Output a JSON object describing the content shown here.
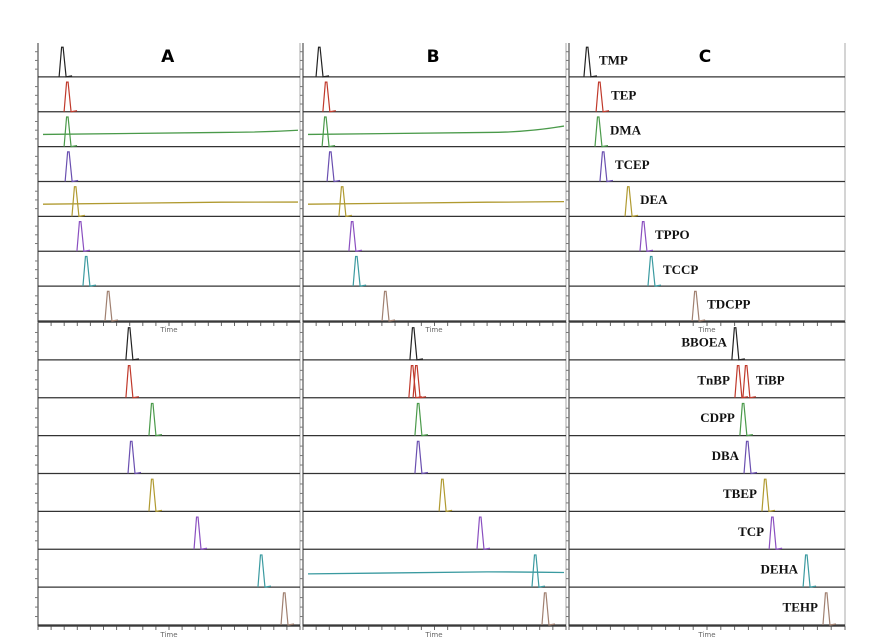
{
  "chart_data": {
    "type": "line",
    "title": "",
    "xlabel": "Time",
    "ylabel": "",
    "xlim": [
      0,
      100
    ],
    "x_units": "percent of run time",
    "compounds_top": [
      "TMP",
      "TEP",
      "DMA",
      "TCEP",
      "DEA",
      "TPPO",
      "TCCP",
      "TDCPP"
    ],
    "compounds_bottom": [
      "BBOEA",
      "TnBP / TiBP",
      "CDPP",
      "DBA",
      "TBEP",
      "TCP",
      "DEHA",
      "TEHP"
    ],
    "labels": {
      "top": [
        "TMP",
        "TEP",
        "DMA",
        "TCEP",
        "DEA",
        "TPPO",
        "TCCP",
        "TDCPP"
      ],
      "bottom": [
        "BBOEA",
        "TnBP",
        "CDPP",
        "DBA",
        "TBEP",
        "TCP",
        "DEHA",
        "TEHP"
      ],
      "extra": "TiBP"
    },
    "trace_colors": [
      "#222222",
      "#c0392b",
      "#4a9a4a",
      "#6a4fb0",
      "#b09a30",
      "#8a4fc0",
      "#3a9aa0",
      "#a08070"
    ],
    "panels": [
      {
        "name": "A",
        "top_peaks": [
          [
            9.2
          ],
          [
            11.1
          ],
          [
            11.1
          ],
          [
            11.5
          ],
          [
            14.1
          ],
          [
            16.0
          ],
          [
            18.3
          ],
          [
            26.7
          ]
        ],
        "bottom_peaks": [
          [
            34.7
          ],
          [
            34.7
          ],
          [
            43.5
          ],
          [
            35.5
          ],
          [
            43.5
          ],
          [
            60.7
          ],
          [
            85.1
          ],
          [
            93.9
          ]
        ],
        "top_drift": [
          0,
          0,
          1,
          0,
          0.5,
          0,
          0,
          0
        ],
        "bottom_drift": [
          0,
          0,
          0,
          0,
          0,
          0,
          0,
          0
        ]
      },
      {
        "name": "B",
        "top_peaks": [
          [
            6.1
          ],
          [
            8.7
          ],
          [
            8.4
          ],
          [
            10.3
          ],
          [
            14.8
          ],
          [
            18.6
          ],
          [
            20.2
          ],
          [
            31.2
          ]
        ],
        "bottom_peaks": [
          [
            41.8
          ],
          [
            41.4,
            43.0
          ],
          [
            43.7
          ],
          [
            43.7
          ],
          [
            52.9
          ],
          [
            67.3
          ],
          [
            88.2
          ],
          [
            92.0
          ]
        ],
        "top_drift": [
          0,
          0,
          2,
          0,
          0.6,
          0,
          0,
          0
        ],
        "bottom_drift": [
          0,
          0,
          0,
          0,
          0,
          0,
          0.3,
          0
        ]
      },
      {
        "name": "C",
        "top_peaks": [
          [
            6.5
          ],
          [
            10.9
          ],
          [
            10.5
          ],
          [
            12.3
          ],
          [
            21.4
          ],
          [
            26.8
          ],
          [
            29.7
          ],
          [
            45.7
          ]
        ],
        "bottom_peaks": [
          [
            60.1
          ],
          [
            61.2,
            64.1
          ],
          [
            63.0
          ],
          [
            64.5
          ],
          [
            71.0
          ],
          [
            73.6
          ],
          [
            85.9
          ],
          [
            93.1
          ]
        ],
        "top_drift": [
          0,
          0,
          0,
          0,
          0,
          0,
          0,
          0
        ],
        "bottom_drift": [
          0,
          0,
          0,
          0,
          0,
          0,
          0,
          0
        ]
      }
    ]
  }
}
